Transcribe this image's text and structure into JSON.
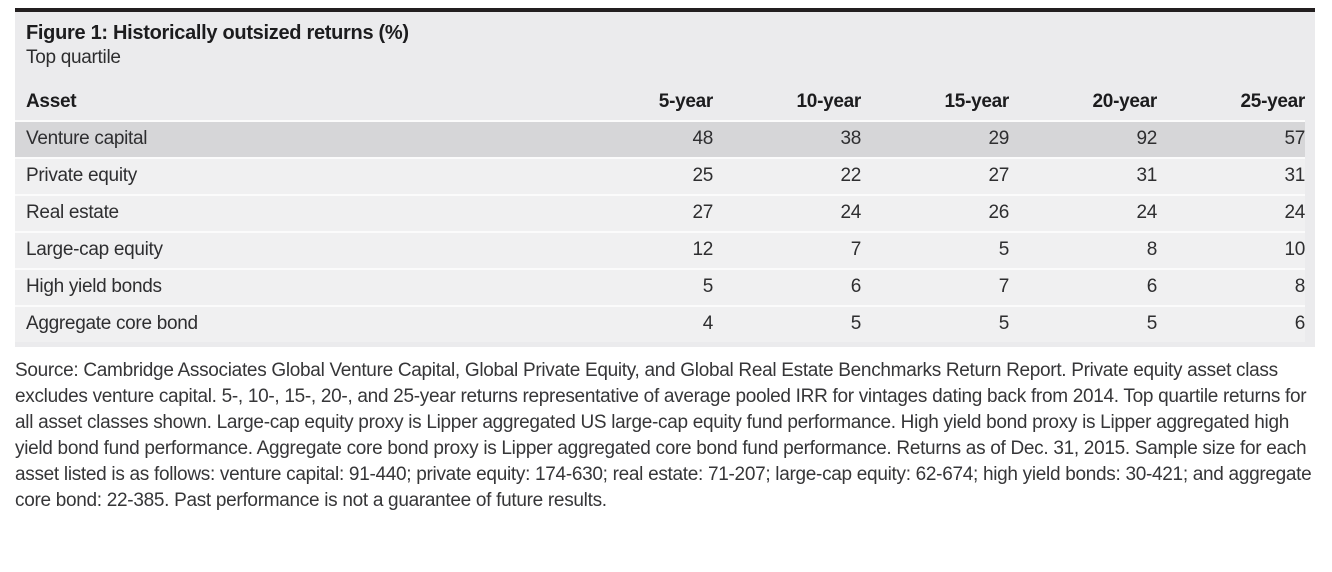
{
  "figure": {
    "title": "Figure 1: Historically outsized returns (%)",
    "subtitle": "Top quartile",
    "table": {
      "columns": [
        "Asset",
        "5-year",
        "10-year",
        "15-year",
        "20-year",
        "25-year"
      ],
      "rows": [
        {
          "asset": "Venture capital",
          "values": [
            48,
            38,
            29,
            92,
            57
          ],
          "highlight": true
        },
        {
          "asset": "Private equity",
          "values": [
            25,
            22,
            27,
            31,
            31
          ],
          "highlight": false
        },
        {
          "asset": "Real estate",
          "values": [
            27,
            24,
            26,
            24,
            24
          ],
          "highlight": false
        },
        {
          "asset": "Large-cap equity",
          "values": [
            12,
            7,
            5,
            8,
            10
          ],
          "highlight": false
        },
        {
          "asset": "High yield bonds",
          "values": [
            5,
            6,
            7,
            6,
            8
          ],
          "highlight": false
        },
        {
          "asset": "Aggregate core bond",
          "values": [
            4,
            5,
            5,
            5,
            6
          ],
          "highlight": false
        }
      ]
    },
    "source": "Source: Cambridge Associates Global Venture Capital, Global Private Equity, and Global Real Estate Benchmarks Return Report. Private equity asset class excludes venture capital. 5-, 10-, 15-, 20-, and 25-year returns representative of average pooled IRR for vintages dating back from 2014. Top quartile returns for all asset classes shown. Large-cap equity proxy is Lipper aggregated US large-cap equity fund performance. High yield bond proxy is Lipper aggregated high yield bond fund performance. Aggregate core bond proxy is Lipper aggregated core bond fund performance. Returns as of Dec. 31, 2015. Sample size for each asset listed is as follows: venture capital: 91-440; private equity: 174-630; real estate: 71-207; large-cap equity: 62-674; high yield bonds: 30-421; and aggregate core bond: 22-385. Past performance is not a guarantee of future results."
  },
  "colors": {
    "top_rule": "#231f20",
    "card_background": "#ebebed",
    "highlight_row": "#d6d6d8",
    "row_background": "#f0f0f1",
    "text": "#2e2e30"
  },
  "chart_data": {
    "type": "table",
    "title": "Figure 1: Historically outsized returns (%)",
    "subtitle": "Top quartile",
    "categories": [
      "5-year",
      "10-year",
      "15-year",
      "20-year",
      "25-year"
    ],
    "series": [
      {
        "name": "Venture capital",
        "values": [
          48,
          38,
          29,
          92,
          57
        ]
      },
      {
        "name": "Private equity",
        "values": [
          25,
          22,
          27,
          31,
          31
        ]
      },
      {
        "name": "Real estate",
        "values": [
          27,
          24,
          26,
          24,
          24
        ]
      },
      {
        "name": "Large-cap equity",
        "values": [
          12,
          7,
          5,
          8,
          10
        ]
      },
      {
        "name": "High yield bonds",
        "values": [
          5,
          6,
          7,
          6,
          8
        ]
      },
      {
        "name": "Aggregate core bond",
        "values": [
          4,
          5,
          5,
          5,
          6
        ]
      }
    ]
  }
}
